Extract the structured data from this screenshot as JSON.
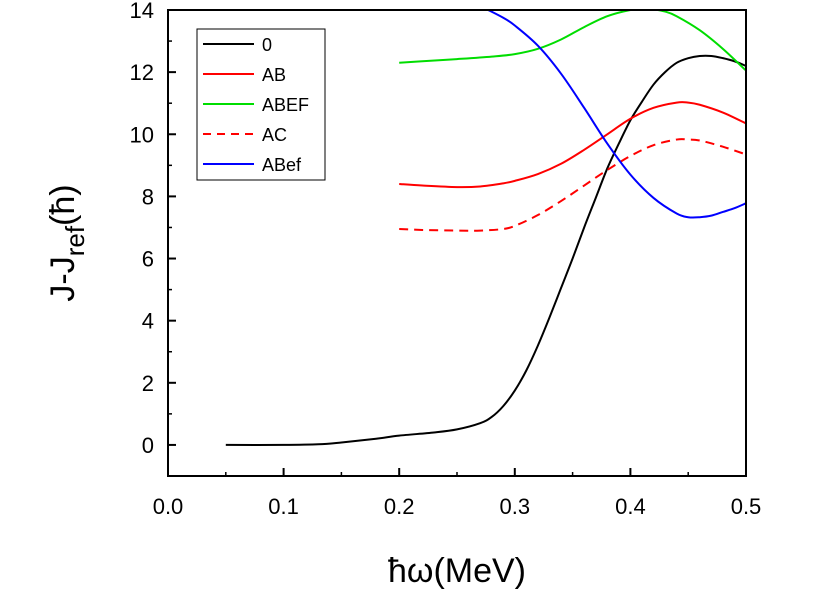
{
  "chart_data": {
    "type": "line",
    "xlabel": "ħω(MeV)",
    "ylabel_main": "J-J",
    "ylabel_sub": "ref",
    "ylabel_tail": "(ħ)",
    "xlim": [
      0.0,
      0.5
    ],
    "ylim": [
      -1,
      14
    ],
    "xticks": [
      0.0,
      0.1,
      0.2,
      0.3,
      0.4,
      0.5
    ],
    "xtick_labels": [
      "0.0",
      "0.1",
      "0.2",
      "0.3",
      "0.4",
      "0.5"
    ],
    "yticks": [
      0,
      2,
      4,
      6,
      8,
      10,
      12,
      14
    ],
    "ytick_labels": [
      "0",
      "2",
      "4",
      "6",
      "8",
      "10",
      "12",
      "14"
    ],
    "legend_position": "top-left",
    "series": [
      {
        "name": "0",
        "color": "#000000",
        "dash": "solid",
        "x": [
          0.05,
          0.1,
          0.13,
          0.15,
          0.18,
          0.2,
          0.23,
          0.25,
          0.27,
          0.28,
          0.29,
          0.3,
          0.31,
          0.32,
          0.33,
          0.34,
          0.35,
          0.36,
          0.37,
          0.38,
          0.39,
          0.4,
          0.41,
          0.42,
          0.43,
          0.44,
          0.45,
          0.46,
          0.47,
          0.48,
          0.49,
          0.5
        ],
        "y": [
          0,
          0,
          0.02,
          0.08,
          0.2,
          0.3,
          0.4,
          0.5,
          0.7,
          0.9,
          1.25,
          1.75,
          2.4,
          3.2,
          4.1,
          5.05,
          6.0,
          7.0,
          7.95,
          8.9,
          9.7,
          10.45,
          11.05,
          11.6,
          12.0,
          12.3,
          12.45,
          12.52,
          12.52,
          12.45,
          12.35,
          12.2
        ]
      },
      {
        "name": "AB",
        "color": "#ff0000",
        "dash": "solid",
        "x": [
          0.2,
          0.22,
          0.25,
          0.27,
          0.29,
          0.3,
          0.32,
          0.34,
          0.36,
          0.38,
          0.4,
          0.42,
          0.44,
          0.45,
          0.46,
          0.48,
          0.5
        ],
        "y": [
          8.4,
          8.35,
          8.3,
          8.32,
          8.42,
          8.5,
          8.72,
          9.05,
          9.5,
          10.0,
          10.5,
          10.85,
          11.02,
          11.02,
          10.95,
          10.7,
          10.35
        ]
      },
      {
        "name": "ABEF",
        "color": "#00dd00",
        "dash": "solid",
        "x": [
          0.2,
          0.22,
          0.25,
          0.28,
          0.3,
          0.32,
          0.34,
          0.36,
          0.38,
          0.4,
          0.41,
          0.42,
          0.43,
          0.44,
          0.46,
          0.48,
          0.5
        ],
        "y": [
          12.3,
          12.35,
          12.42,
          12.5,
          12.58,
          12.75,
          13.05,
          13.45,
          13.8,
          14.0,
          14.02,
          14.02,
          13.95,
          13.8,
          13.35,
          12.75,
          12.05
        ]
      },
      {
        "name": "AC",
        "color": "#ff0000",
        "dash": "dashed",
        "x": [
          0.2,
          0.22,
          0.25,
          0.27,
          0.29,
          0.3,
          0.32,
          0.34,
          0.36,
          0.38,
          0.4,
          0.42,
          0.44,
          0.45,
          0.46,
          0.48,
          0.5
        ],
        "y": [
          6.95,
          6.92,
          6.9,
          6.9,
          6.95,
          7.05,
          7.4,
          7.85,
          8.35,
          8.85,
          9.3,
          9.65,
          9.83,
          9.83,
          9.8,
          9.6,
          9.35
        ]
      },
      {
        "name": "ABef",
        "color": "#0000ff",
        "dash": "solid",
        "x": [
          0.277,
          0.29,
          0.3,
          0.32,
          0.34,
          0.36,
          0.38,
          0.4,
          0.42,
          0.44,
          0.45,
          0.46,
          0.47,
          0.48,
          0.49,
          0.5
        ],
        "y": [
          14.0,
          13.75,
          13.5,
          12.85,
          11.95,
          10.85,
          9.7,
          8.7,
          7.95,
          7.45,
          7.33,
          7.33,
          7.38,
          7.5,
          7.62,
          7.78
        ]
      }
    ]
  }
}
